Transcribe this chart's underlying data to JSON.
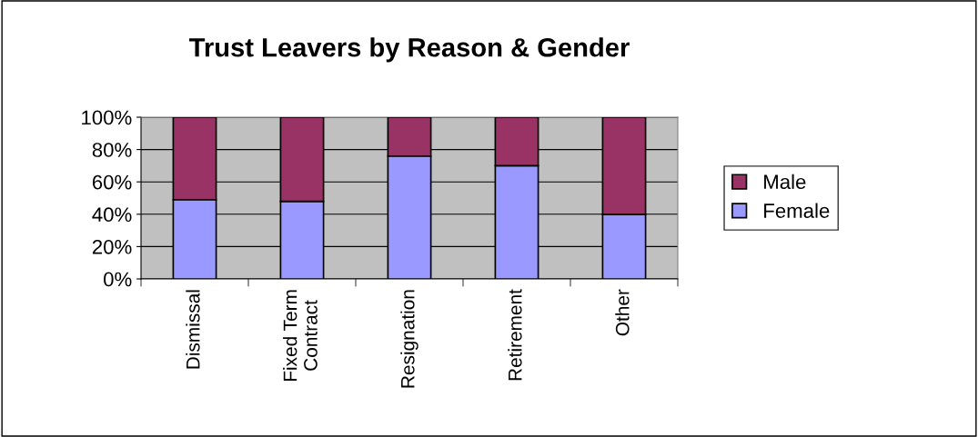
{
  "chart_data": {
    "type": "bar",
    "stacked": true,
    "title": "Trust Leavers by Reason & Gender",
    "categories": [
      "Dismissal",
      "Fixed Term\nContract",
      "Resignation",
      "Retirement",
      "Other"
    ],
    "series": [
      {
        "name": "Female",
        "color": "#9999ff",
        "values": [
          49,
          48,
          76,
          70,
          40
        ]
      },
      {
        "name": "Male",
        "color": "#993366",
        "values": [
          51,
          52,
          24,
          30,
          60
        ]
      }
    ],
    "ylim": [
      0,
      100
    ],
    "yticks": [
      {
        "value": 0,
        "label": "0%"
      },
      {
        "value": 20,
        "label": "20%"
      },
      {
        "value": 40,
        "label": "40%"
      },
      {
        "value": 60,
        "label": "60%"
      },
      {
        "value": 80,
        "label": "80%"
      },
      {
        "value": 100,
        "label": "100%"
      }
    ],
    "grid": "y",
    "legend": "right"
  }
}
